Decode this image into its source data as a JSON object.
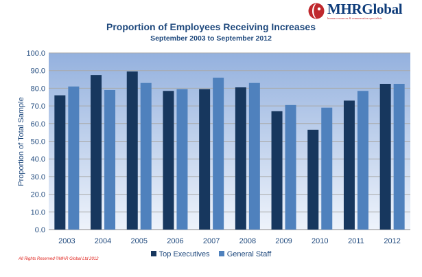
{
  "logo": {
    "name": "MHRGlobal",
    "tagline": "human resources & remuneration specialists"
  },
  "footer": {
    "copyright": "All Rights Reserved ©MHR Global Ltd 2012"
  },
  "colors": {
    "top_executives": "#17375e",
    "general_staff": "#4f81bd",
    "plot_top": "#94b1de",
    "plot_bottom": "#eef3fb",
    "title": "#1f497d",
    "axis_text": "#1f497d",
    "copyright": "#e0201b"
  },
  "chart_data": {
    "type": "bar",
    "title": "Proportion of Employees Receiving Increases",
    "subtitle": "September 2003 to September 2012",
    "xlabel": "",
    "ylabel": "Proportion of Total Sample",
    "ylim": [
      0,
      100
    ],
    "yticks": [
      "0.0",
      "10.0",
      "20.0",
      "30.0",
      "40.0",
      "50.0",
      "60.0",
      "70.0",
      "80.0",
      "90.0",
      "100.0"
    ],
    "categories": [
      "2003",
      "2004",
      "2005",
      "2006",
      "2007",
      "2008",
      "2009",
      "2010",
      "2011",
      "2012"
    ],
    "series": [
      {
        "name": "Top Executives",
        "values": [
          76,
          87.5,
          89.5,
          78.5,
          79.5,
          80.5,
          67,
          56.5,
          73,
          82.5
        ]
      },
      {
        "name": "General Staff",
        "values": [
          81,
          79,
          83,
          79.5,
          86,
          83,
          70.5,
          69,
          78.5,
          82.5
        ]
      }
    ],
    "grid": true,
    "legend": "bottom"
  }
}
